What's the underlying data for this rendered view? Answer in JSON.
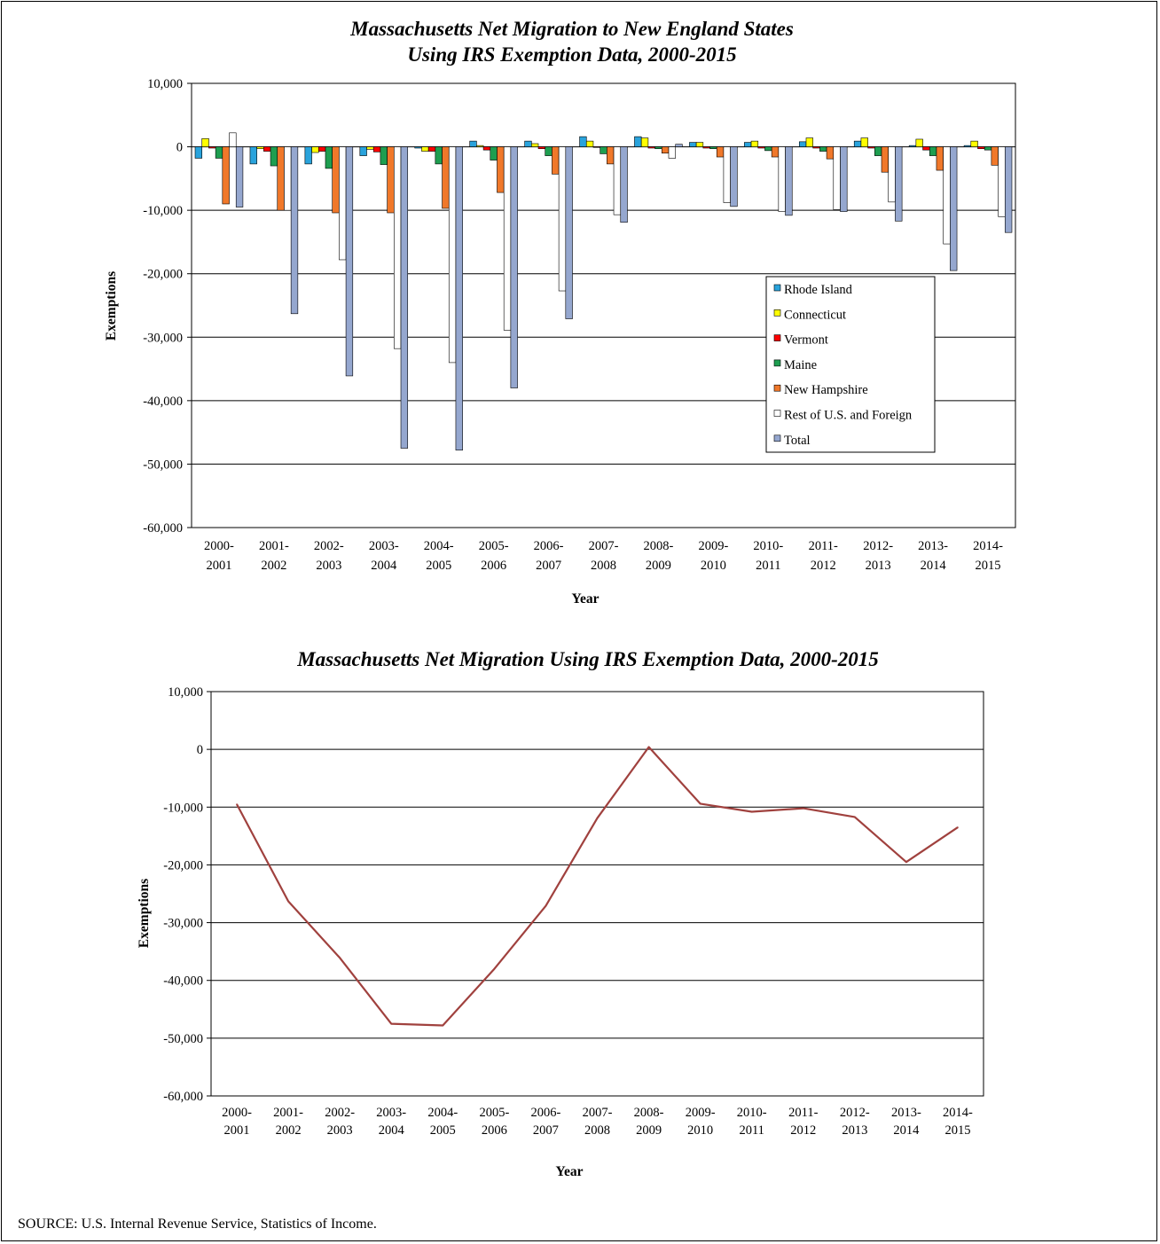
{
  "chart_data": [
    {
      "type": "bar",
      "title_line1": "Massachusetts Net Migration to New England States",
      "title_line2": "Using IRS Exemption Data, 2000-2015",
      "xlabel": "Year",
      "ylabel": "Exemptions",
      "ylim": [
        -60000,
        10000
      ],
      "yticks": [
        "10,000",
        "0",
        "-10,000",
        "-20,000",
        "-30,000",
        "-40,000",
        "-50,000",
        "-60,000"
      ],
      "ytick_values": [
        10000,
        0,
        -10000,
        -20000,
        -30000,
        -40000,
        -50000,
        -60000
      ],
      "grid": true,
      "legend_position": "right",
      "categories": [
        [
          "2000-",
          "2001"
        ],
        [
          "2001-",
          "2002"
        ],
        [
          "2002-",
          "2003"
        ],
        [
          "2003-",
          "2004"
        ],
        [
          "2004-",
          "2005"
        ],
        [
          "2005-",
          "2006"
        ],
        [
          "2006-",
          "2007"
        ],
        [
          "2007-",
          "2008"
        ],
        [
          "2008-",
          "2009"
        ],
        [
          "2009-",
          "2010"
        ],
        [
          "2010-",
          "2011"
        ],
        [
          "2011-",
          "2012"
        ],
        [
          "2012-",
          "2013"
        ],
        [
          "2013-",
          "2014"
        ],
        [
          "2014-",
          "2015"
        ]
      ],
      "series": [
        {
          "name": "Rhode Island",
          "color": "#29a3dc",
          "values": [
            -1800,
            -2700,
            -2700,
            -1400,
            -200,
            900,
            900,
            1600,
            1600,
            700,
            700,
            800,
            900,
            200,
            200
          ]
        },
        {
          "name": "Connecticut",
          "color": "#ffff00",
          "values": [
            1300,
            -300,
            -900,
            -400,
            -700,
            200,
            500,
            900,
            1400,
            700,
            900,
            1400,
            1400,
            1200,
            900
          ]
        },
        {
          "name": "Vermont",
          "color": "#ff0000",
          "values": [
            -200,
            -700,
            -700,
            -800,
            -700,
            -500,
            -300,
            -100,
            -200,
            -200,
            -200,
            -200,
            -200,
            -500,
            -300
          ]
        },
        {
          "name": "Maine",
          "color": "#1e9e50",
          "values": [
            -1800,
            -3000,
            -3400,
            -2800,
            -2700,
            -2100,
            -1400,
            -1100,
            -300,
            -300,
            -600,
            -700,
            -1400,
            -1400,
            -500
          ]
        },
        {
          "name": "New Hampshire",
          "color": "#f0782a",
          "values": [
            -9000,
            -10000,
            -10400,
            -10400,
            -9700,
            -7200,
            -4300,
            -2700,
            -1000,
            -1600,
            -1600,
            -1900,
            -4000,
            -3700,
            -2900
          ]
        },
        {
          "name": "Rest of U.S. and Foreign",
          "color": "#ffffff",
          "values": [
            2200,
            -10000,
            -17800,
            -31800,
            -34000,
            -28900,
            -22700,
            -10700,
            -1800,
            -8800,
            -10200,
            -9900,
            -8700,
            -15300,
            -11000
          ]
        },
        {
          "name": "Total",
          "color": "#95a7cf",
          "values": [
            -9500,
            -26300,
            -36100,
            -47500,
            -47800,
            -38000,
            -27100,
            -11900,
            400,
            -9400,
            -10800,
            -10200,
            -11700,
            -19500,
            -13500
          ]
        }
      ]
    },
    {
      "type": "line",
      "title": "Massachusetts Net Migration Using IRS Exemption Data, 2000-2015",
      "xlabel": "Year",
      "ylabel": "Exemptions",
      "ylim": [
        -60000,
        10000
      ],
      "yticks": [
        "10,000",
        "0",
        "-10,000",
        "-20,000",
        "-30,000",
        "-40,000",
        "-50,000",
        "-60,000"
      ],
      "ytick_values": [
        10000,
        0,
        -10000,
        -20000,
        -30000,
        -40000,
        -50000,
        -60000
      ],
      "grid": true,
      "categories": [
        [
          "2000-",
          "2001"
        ],
        [
          "2001-",
          "2002"
        ],
        [
          "2002-",
          "2003"
        ],
        [
          "2003-",
          "2004"
        ],
        [
          "2004-",
          "2005"
        ],
        [
          "2005-",
          "2006"
        ],
        [
          "2006-",
          "2007"
        ],
        [
          "2007-",
          "2008"
        ],
        [
          "2008-",
          "2009"
        ],
        [
          "2009-",
          "2010"
        ],
        [
          "2010-",
          "2011"
        ],
        [
          "2011-",
          "2012"
        ],
        [
          "2012-",
          "2013"
        ],
        [
          "2013-",
          "2014"
        ],
        [
          "2014-",
          "2015"
        ]
      ],
      "series": [
        {
          "color": "#a0413e",
          "values": [
            -9500,
            -26300,
            -36100,
            -47500,
            -47800,
            -38000,
            -27100,
            -11900,
            400,
            -9400,
            -10800,
            -10200,
            -11700,
            -19500,
            -13500
          ]
        }
      ]
    }
  ],
  "source": "SOURCE: U.S. Internal Revenue Service, Statistics of Income."
}
